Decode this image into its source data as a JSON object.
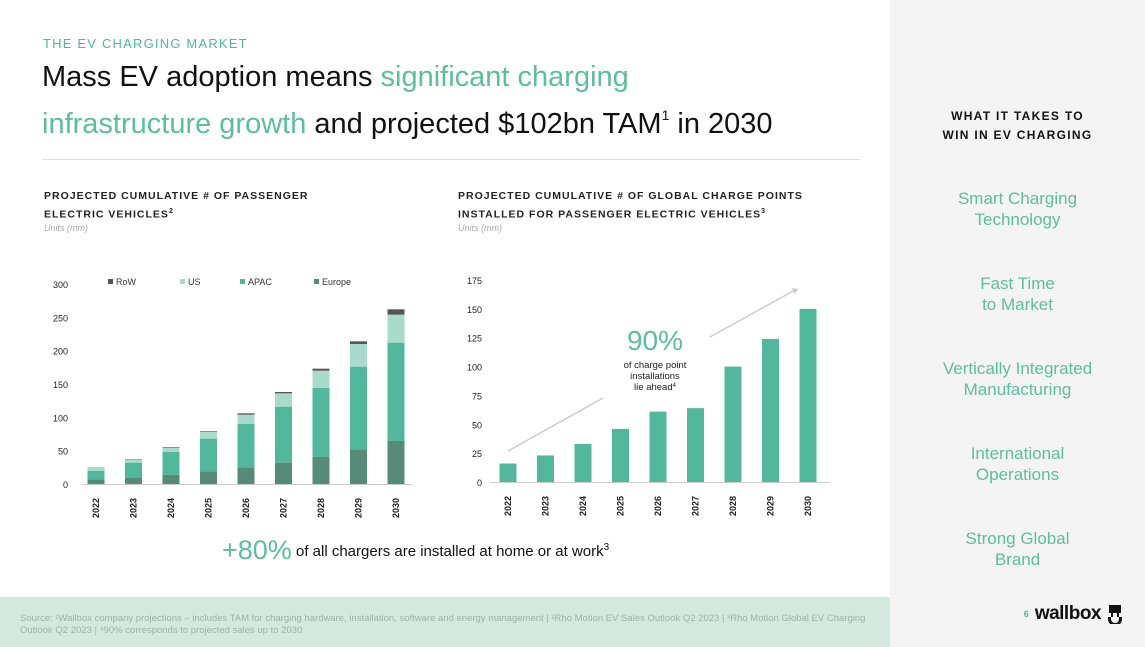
{
  "header": {
    "kicker": "THE EV CHARGING MARKET",
    "title_1": "Mass EV adoption means ",
    "title_hl_1": "significant charging",
    "title_hl_2": "infrastructure growth",
    "title_2": " and projected $102bn TAM",
    "title_sup": "1",
    "title_3": " in 2030"
  },
  "right_panel": {
    "heading_1": "WHAT IT TAKES TO",
    "heading_2": "WIN IN EV CHARGING",
    "items": [
      {
        "l1": "Smart Charging",
        "l2": "Technology"
      },
      {
        "l1": "Fast Time",
        "l2": "to Market"
      },
      {
        "l1": "Vertically Integrated",
        "l2": "Manufacturing"
      },
      {
        "l1": "International",
        "l2": "Operations"
      },
      {
        "l1": "Strong Global",
        "l2": "Brand"
      }
    ]
  },
  "callout": {
    "big": "+80%",
    "text": " of all chargers are installed at home or at work",
    "sup": "3"
  },
  "footer": {
    "source": "Source: ¹Wallbox company projections – includes TAM for charging hardware, installation, software and energy management | ²Rho Motion EV Sales Outlook Q2 2023 | ³Rho Motion Global EV Charging Outlook Q2 2023 | ⁴90% corresponds to projected sales up to 2030",
    "page": "6",
    "brand": "wallbox"
  },
  "colors": {
    "accent": "#5bbf9f",
    "europe": "#558b77",
    "apac": "#52b89c",
    "us": "#a8dbcb",
    "row": "#555555"
  },
  "chart_data": [
    {
      "type": "bar",
      "stacked": true,
      "title_1": "PROJECTED CUMULATIVE # OF PASSENGER",
      "title_2": "ELECTRIC VEHICLES",
      "title_sup": "2",
      "units": "Units (mm)",
      "categories": [
        "2022",
        "2023",
        "2024",
        "2025",
        "2026",
        "2027",
        "2028",
        "2029",
        "2030"
      ],
      "yticks": [
        "0",
        "50",
        "100",
        "150",
        "200",
        "250",
        "300"
      ],
      "ylim": [
        0,
        300
      ],
      "legend_position": "top",
      "series": [
        {
          "name": "Europe",
          "values": [
            7,
            10,
            14,
            19,
            25,
            32,
            41,
            52,
            65
          ]
        },
        {
          "name": "APAC",
          "values": [
            13,
            22,
            34,
            49,
            65,
            84,
            103,
            124,
            147
          ]
        },
        {
          "name": "US",
          "values": [
            4,
            5,
            6,
            10,
            14,
            20,
            26,
            34,
            42
          ]
        },
        {
          "name": "RoW",
          "values": [
            0.5,
            0.5,
            1,
            1,
            2,
            2,
            3,
            4,
            8
          ]
        }
      ],
      "legend_order": [
        "RoW",
        "US",
        "APAC",
        "Europe"
      ]
    },
    {
      "type": "bar",
      "title_1": "PROJECTED CUMULATIVE # OF GLOBAL CHARGE POINTS",
      "title_2": "INSTALLED FOR PASSENGER ELECTRIC VEHICLES",
      "title_sup": "3",
      "units": "Units (mm)",
      "categories": [
        "2022",
        "2023",
        "2024",
        "2025",
        "2026",
        "2027",
        "2028",
        "2029",
        "2030"
      ],
      "values": [
        16,
        23,
        33,
        46,
        61,
        64,
        100,
        124,
        150
      ],
      "yticks": [
        "0",
        "25",
        "50",
        "75",
        "100",
        "125",
        "150",
        "175"
      ],
      "ylim": [
        0,
        175
      ],
      "annotation": {
        "big": "90%",
        "l1": "of charge point",
        "l2": "installations",
        "l3": "lie ahead",
        "sup": "4"
      }
    }
  ]
}
